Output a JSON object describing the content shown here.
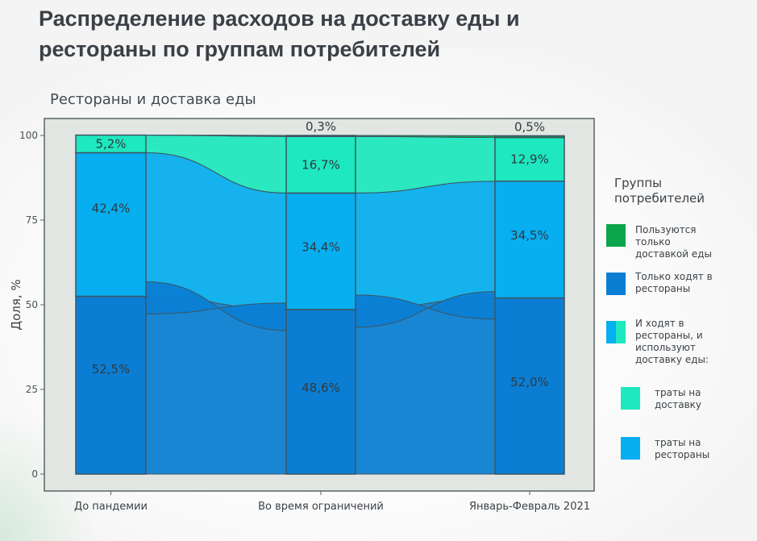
{
  "title": "Распределение расходов на доставку еды и рестораны по группам потребителей",
  "subtitle": "Рестораны и доставка еды",
  "legend": {
    "title": "Группы потребителей",
    "items": [
      {
        "label": "Пользуются только доставкой еды",
        "color": "#0aa54a"
      },
      {
        "label": "Только ходят в рестораны",
        "color": "#0b7ed4"
      },
      {
        "label": "И ходят в рестораны, и используют доставку еды:",
        "colors": [
          "#07aef0",
          "#1ee8c0"
        ]
      },
      {
        "label": "траты на доставку",
        "color": "#1ee8c0"
      },
      {
        "label": "траты на рестораны",
        "color": "#07aef0"
      }
    ]
  },
  "chart_data": {
    "type": "alluvial",
    "title": "",
    "xlabel": "",
    "ylabel": "Доля, %",
    "ylim": [
      0,
      100
    ],
    "yticks": [
      0,
      25,
      50,
      75,
      100
    ],
    "grid": false,
    "categories": [
      "До пандемии",
      "Во время ограничений",
      "Январь-Февраль 2021"
    ],
    "series": [
      {
        "name": "Только ходят в рестораны",
        "key": "only_rest",
        "color": "#0b7ed4",
        "values": [
          52.5,
          48.6,
          52.0
        ],
        "labels": [
          "52,5%",
          "48,6%",
          "52,0%"
        ]
      },
      {
        "name": "траты на рестораны",
        "key": "both_rest",
        "color": "#07aef0",
        "values": [
          42.4,
          34.4,
          34.5
        ],
        "labels": [
          "42,4%",
          "34,4%",
          "34,5%"
        ]
      },
      {
        "name": "траты на доставку",
        "key": "both_del",
        "color": "#1ee8c0",
        "values": [
          5.2,
          16.7,
          12.9
        ],
        "labels": [
          "5,2%",
          "16,7%",
          "12,9%"
        ]
      },
      {
        "name": "Пользуются только доставкой еды",
        "key": "only_del",
        "color": "#0aa54a",
        "values": [
          0.0,
          0.3,
          0.5
        ],
        "labels": [
          "",
          "0,3%",
          "0,5%"
        ]
      }
    ]
  }
}
